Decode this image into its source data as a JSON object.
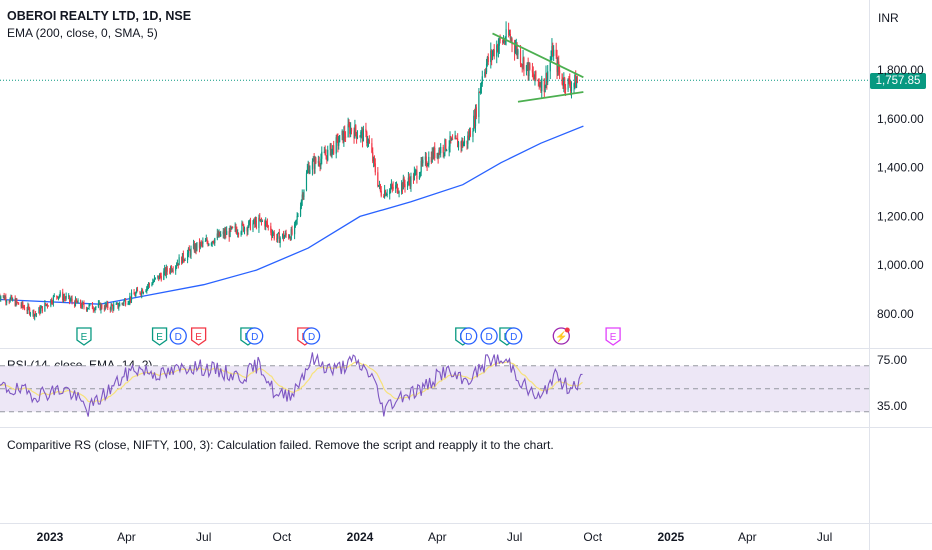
{
  "header": {
    "title": "OBEROI REALTY LTD, 1D, NSE",
    "ema_legend": "EMA (200, close, 0, SMA, 5)",
    "currency": "INR"
  },
  "last_price": "1,757.85",
  "rsi_legend": "RSI (14, close, EMA, 14, 2)",
  "crs_message": "Comparitive RS (close, NIFTY, 100, 3): Calculation failed. Remove the script and reapply it to the chart.",
  "colors": {
    "up": "#089981",
    "down": "#f23645",
    "ema": "#2962ff",
    "trendline": "#4caf50",
    "rsi": "#7e57c2",
    "rsi_ma": "#f7e27a",
    "rsi_band": "#ede7f6",
    "event_earnings_up": "#089981",
    "event_earnings_down": "#f23645",
    "event_dividend": "#2962ff",
    "event_split": "#9c27b0",
    "event_upcoming": "#e040fb"
  },
  "chart_data": [
    {
      "type": "candlestick",
      "y_axis_ticks": [
        "800.00",
        "1,000.00",
        "1,200.00",
        "1,400.00",
        "1,600.00",
        "1,800.00"
      ],
      "ylim": [
        740,
        1960
      ],
      "x_axis_ticks": [
        "2023",
        "Apr",
        "Jul",
        "Oct",
        "2024",
        "Apr",
        "Jul",
        "Oct",
        "2025",
        "Apr",
        "Jul"
      ],
      "x_axis_bold": [
        "2023",
        "2024",
        "2025"
      ],
      "price_path": [
        [
          "2022-11-01",
          880
        ],
        [
          "2022-11-20",
          850
        ],
        [
          "2022-12-15",
          800
        ],
        [
          "2023-01-10",
          880
        ],
        [
          "2023-02-10",
          830
        ],
        [
          "2023-03-20",
          830
        ],
        [
          "2023-04-20",
          900
        ],
        [
          "2023-05-20",
          980
        ],
        [
          "2023-06-20",
          1070
        ],
        [
          "2023-07-20",
          1120
        ],
        [
          "2023-08-20",
          1160
        ],
        [
          "2023-09-10",
          1180
        ],
        [
          "2023-09-25",
          1110
        ],
        [
          "2023-10-15",
          1130
        ],
        [
          "2023-11-01",
          1400
        ],
        [
          "2023-11-25",
          1460
        ],
        [
          "2023-12-20",
          1560
        ],
        [
          "2024-01-10",
          1520
        ],
        [
          "2024-01-25",
          1300
        ],
        [
          "2024-02-15",
          1320
        ],
        [
          "2024-03-01",
          1350
        ],
        [
          "2024-03-25",
          1450
        ],
        [
          "2024-04-15",
          1500
        ],
        [
          "2024-05-05",
          1500
        ],
        [
          "2024-05-15",
          1600
        ],
        [
          "2024-05-25",
          1800
        ],
        [
          "2024-06-10",
          1900
        ],
        [
          "2024-06-25",
          1940
        ],
        [
          "2024-07-10",
          1840
        ],
        [
          "2024-07-25",
          1760
        ],
        [
          "2024-08-05",
          1740
        ],
        [
          "2024-08-15",
          1880
        ],
        [
          "2024-08-25",
          1760
        ],
        [
          "2024-09-05",
          1740
        ],
        [
          "2024-09-15",
          1758
        ]
      ],
      "ema_200": [
        [
          "2022-11-01",
          860
        ],
        [
          "2023-03-01",
          840
        ],
        [
          "2023-05-01",
          880
        ],
        [
          "2023-07-01",
          920
        ],
        [
          "2023-09-01",
          980
        ],
        [
          "2023-11-01",
          1070
        ],
        [
          "2024-01-01",
          1200
        ],
        [
          "2024-03-01",
          1260
        ],
        [
          "2024-05-01",
          1330
        ],
        [
          "2024-06-15",
          1420
        ],
        [
          "2024-08-01",
          1500
        ],
        [
          "2024-09-20",
          1570
        ]
      ],
      "trendlines": [
        {
          "from": [
            "2024-06-05",
            1950
          ],
          "to": [
            "2024-09-20",
            1770
          ]
        },
        {
          "from": [
            "2024-07-05",
            1670
          ],
          "to": [
            "2024-09-20",
            1710
          ]
        }
      ],
      "events": [
        {
          "date": "2023-02-10",
          "kind": "earnings-up",
          "glyph": "E"
        },
        {
          "date": "2023-05-10",
          "kind": "earnings-up",
          "glyph": "E"
        },
        {
          "date": "2023-06-01",
          "kind": "dividend",
          "glyph": "D"
        },
        {
          "date": "2023-06-25",
          "kind": "earnings-down",
          "glyph": "E"
        },
        {
          "date": "2023-08-22",
          "kind": "earnings-up",
          "glyph": "E"
        },
        {
          "date": "2023-08-30",
          "kind": "dividend",
          "glyph": "D"
        },
        {
          "date": "2023-10-28",
          "kind": "earnings-down",
          "glyph": "E"
        },
        {
          "date": "2023-11-05",
          "kind": "dividend",
          "glyph": "D"
        },
        {
          "date": "2024-05-01",
          "kind": "earnings-up",
          "glyph": "E"
        },
        {
          "date": "2024-05-08",
          "kind": "dividend",
          "glyph": "D"
        },
        {
          "date": "2024-06-01",
          "kind": "dividend",
          "glyph": "D"
        },
        {
          "date": "2024-06-22",
          "kind": "earnings-up",
          "glyph": "E"
        },
        {
          "date": "2024-06-30",
          "kind": "dividend",
          "glyph": "D"
        },
        {
          "date": "2024-08-25",
          "kind": "split",
          "glyph": "⚡"
        },
        {
          "date": "2024-10-25",
          "kind": "upcoming",
          "glyph": "E"
        }
      ]
    },
    {
      "type": "line",
      "name": "RSI",
      "y_axis_ticks": [
        "75.00",
        "35.00"
      ],
      "ylim": [
        20,
        85
      ],
      "bands": [
        70,
        30
      ],
      "series_path": [
        [
          "2022-11-01",
          52
        ],
        [
          "2022-12-15",
          45
        ],
        [
          "2023-01-20",
          50
        ],
        [
          "2023-02-15",
          32
        ],
        [
          "2023-03-10",
          48
        ],
        [
          "2023-04-10",
          68
        ],
        [
          "2023-05-15",
          62
        ],
        [
          "2023-06-15",
          70
        ],
        [
          "2023-07-15",
          66
        ],
        [
          "2023-08-15",
          60
        ],
        [
          "2023-09-05",
          72
        ],
        [
          "2023-09-25",
          42
        ],
        [
          "2023-10-15",
          48
        ],
        [
          "2023-11-05",
          76
        ],
        [
          "2023-12-01",
          66
        ],
        [
          "2023-12-25",
          74
        ],
        [
          "2024-01-15",
          62
        ],
        [
          "2024-01-28",
          32
        ],
        [
          "2024-02-20",
          45
        ],
        [
          "2024-03-15",
          50
        ],
        [
          "2024-04-10",
          66
        ],
        [
          "2024-05-01",
          56
        ],
        [
          "2024-05-15",
          62
        ],
        [
          "2024-06-01",
          76
        ],
        [
          "2024-06-25",
          72
        ],
        [
          "2024-07-15",
          50
        ],
        [
          "2024-08-01",
          40
        ],
        [
          "2024-08-15",
          62
        ],
        [
          "2024-09-01",
          52
        ],
        [
          "2024-09-20",
          58
        ]
      ]
    }
  ]
}
